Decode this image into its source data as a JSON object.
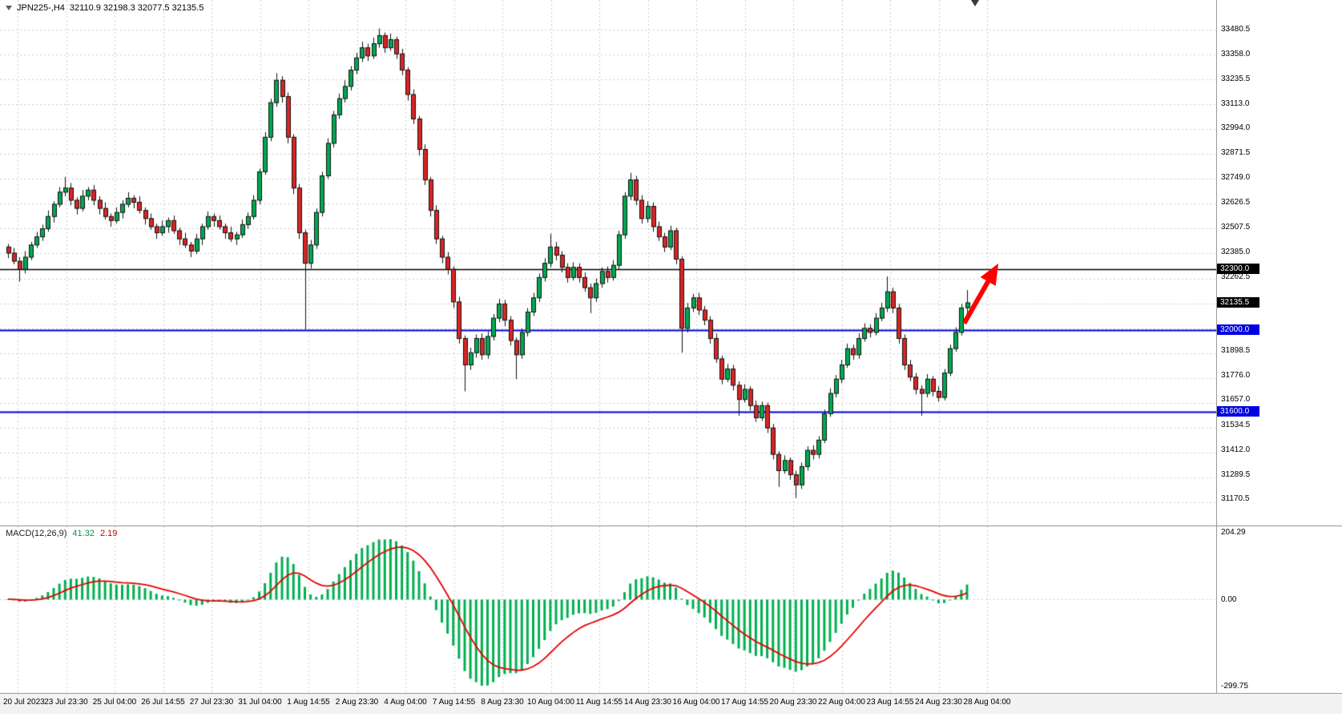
{
  "window": {
    "title_symbol": "JPN225-,H4",
    "title_ohlc": "32110.9 32198.3 32077.5 32135.5"
  },
  "price_axis": {
    "labels": [
      "33480.5",
      "33358.0",
      "33235.5",
      "33113.0",
      "32994.0",
      "32871.5",
      "32749.0",
      "32626.5",
      "32507.5",
      "32385.0",
      "32262.5",
      "31898.5",
      "31776.0",
      "31657.0",
      "31534.5",
      "31412.0",
      "31289.5",
      "31170.5"
    ],
    "grid_top": 33480.5,
    "grid_step": 122.5,
    "grid_count": 20,
    "range_top": 33625,
    "range_bottom": 31040
  },
  "time_axis": {
    "labels": [
      "20 Jul 2023",
      "23 Jul 23:30",
      "25 Jul 04:00",
      "26 Jul 14:55",
      "27 Jul 23:30",
      "31 Jul 04:00",
      "1 Aug 14:55",
      "2 Aug 23:30",
      "4 Aug 04:00",
      "7 Aug 14:55",
      "8 Aug 23:30",
      "10 Aug 04:00",
      "11 Aug 14:55",
      "14 Aug 23:30",
      "16 Aug 04:00",
      "17 Aug 14:55",
      "20 Aug 23:30",
      "22 Aug 04:00",
      "23 Aug 14:55",
      "24 Aug 23:30",
      "28 Aug 04:00"
    ]
  },
  "hlines": [
    {
      "price": 32300.0,
      "label": "32300.0",
      "color": "#000000",
      "badge_bg": "#000000",
      "width": 1.5
    },
    {
      "price": 32000.0,
      "label": "32000.0",
      "color": "#0000E0",
      "badge_bg": "#0000E0",
      "width": 2
    },
    {
      "price": 31600.0,
      "label": "31600.0",
      "color": "#0000E0",
      "badge_bg": "#0000E0",
      "width": 2
    }
  ],
  "current_price": {
    "value": 32135.5,
    "label": "32135.5",
    "badge_bg": "#000000"
  },
  "macd": {
    "label": "MACD(12,26,9)",
    "value_main": "41.32",
    "value_signal": "2.19",
    "axis_top": "204.29",
    "axis_zero": "0.00",
    "axis_bottom": "-299.75",
    "histogram_color": "#00B050",
    "signal_color": "#E60000"
  },
  "annotation_arrow": {
    "color": "#FF0000",
    "from": {
      "bar": 167.5,
      "price": 32035
    },
    "to": {
      "bar": 173,
      "price": 32305
    }
  },
  "colors": {
    "bg": "#FFFFFF",
    "grid": "#CDCDCD",
    "candle_up": "#00A850",
    "candle_down": "#D92525",
    "candle_outline": "#111111",
    "axis_text": "#000000"
  },
  "chart_data": [
    {
      "type": "candlestick",
      "title": "JPN225-,H4",
      "symbol": "JPN225-",
      "timeframe": "H4",
      "ylim": [
        31040,
        33625
      ],
      "current_bar_ohlc": {
        "open": 32110.9,
        "high": 32198.3,
        "low": 32077.5,
        "close": 32135.5
      },
      "x_tick_labels": [
        "20 Jul 2023",
        "23 Jul 23:30",
        "25 Jul 04:00",
        "26 Jul 14:55",
        "27 Jul 23:30",
        "31 Jul 04:00",
        "1 Aug 14:55",
        "2 Aug 23:30",
        "4 Aug 04:00",
        "7 Aug 14:55",
        "8 Aug 23:30",
        "10 Aug 04:00",
        "11 Aug 14:55",
        "14 Aug 23:30",
        "16 Aug 04:00",
        "17 Aug 14:55",
        "20 Aug 23:30",
        "22 Aug 04:00",
        "23 Aug 14:55",
        "24 Aug 23:30",
        "28 Aug 04:00"
      ],
      "horizontal_levels": [
        32300.0,
        32000.0,
        31600.0
      ],
      "candles": [
        [
          32410,
          32425,
          32355,
          32380
        ],
        [
          32380,
          32405,
          32325,
          32340
        ],
        [
          32340,
          32360,
          32240,
          32300
        ],
        [
          32300,
          32390,
          32280,
          32360
        ],
        [
          32360,
          32435,
          32345,
          32420
        ],
        [
          32420,
          32485,
          32405,
          32460
        ],
        [
          32460,
          32520,
          32440,
          32500
        ],
        [
          32500,
          32590,
          32485,
          32560
        ],
        [
          32560,
          32635,
          32530,
          32620
        ],
        [
          32620,
          32705,
          32605,
          32680
        ],
        [
          32680,
          32755,
          32660,
          32700
        ],
        [
          32700,
          32725,
          32615,
          32640
        ],
        [
          32640,
          32655,
          32570,
          32600
        ],
        [
          32600,
          32690,
          32585,
          32660
        ],
        [
          32660,
          32705,
          32640,
          32690
        ],
        [
          32690,
          32715,
          32615,
          32640
        ],
        [
          32640,
          32660,
          32570,
          32600
        ],
        [
          32600,
          32630,
          32545,
          32560
        ],
        [
          32560,
          32575,
          32510,
          32540
        ],
        [
          32540,
          32605,
          32525,
          32580
        ],
        [
          32580,
          32640,
          32550,
          32620
        ],
        [
          32620,
          32680,
          32605,
          32650
        ],
        [
          32650,
          32665,
          32600,
          32630
        ],
        [
          32630,
          32660,
          32575,
          32590
        ],
        [
          32590,
          32605,
          32520,
          32550
        ],
        [
          32550,
          32575,
          32495,
          32510
        ],
        [
          32510,
          32525,
          32450,
          32480
        ],
        [
          32480,
          32540,
          32465,
          32510
        ],
        [
          32510,
          32555,
          32480,
          32540
        ],
        [
          32540,
          32565,
          32475,
          32490
        ],
        [
          32490,
          32505,
          32420,
          32450
        ],
        [
          32450,
          32480,
          32405,
          32420
        ],
        [
          32420,
          32435,
          32360,
          32390
        ],
        [
          32390,
          32475,
          32375,
          32450
        ],
        [
          32450,
          32525,
          32420,
          32510
        ],
        [
          32510,
          32585,
          32495,
          32560
        ],
        [
          32560,
          32575,
          32510,
          32540
        ],
        [
          32540,
          32565,
          32495,
          32510
        ],
        [
          32510,
          32525,
          32450,
          32480
        ],
        [
          32480,
          32510,
          32435,
          32450
        ],
        [
          32450,
          32485,
          32420,
          32470
        ],
        [
          32470,
          32545,
          32455,
          32520
        ],
        [
          32520,
          32580,
          32500,
          32560
        ],
        [
          32560,
          32665,
          32545,
          32640
        ],
        [
          32640,
          32795,
          32620,
          32780
        ],
        [
          32780,
          32975,
          32765,
          32950
        ],
        [
          32950,
          33140,
          32930,
          33120
        ],
        [
          33120,
          33265,
          33100,
          33230
        ],
        [
          33230,
          33250,
          33120,
          33150
        ],
        [
          33150,
          33170,
          32920,
          32950
        ],
        [
          32950,
          32965,
          32670,
          32700
        ],
        [
          32700,
          32720,
          32450,
          32480
        ],
        [
          32480,
          32495,
          32005,
          32330
        ],
        [
          32330,
          32445,
          32305,
          32420
        ],
        [
          32420,
          32600,
          32400,
          32580
        ],
        [
          32580,
          32780,
          32560,
          32760
        ],
        [
          32760,
          32945,
          32745,
          32920
        ],
        [
          32920,
          33080,
          32900,
          33060
        ],
        [
          33060,
          33165,
          33040,
          33140
        ],
        [
          33140,
          33230,
          33120,
          33200
        ],
        [
          33200,
          33300,
          33180,
          33280
        ],
        [
          33280,
          33365,
          33260,
          33340
        ],
        [
          33340,
          33420,
          33320,
          33390
        ],
        [
          33390,
          33410,
          33325,
          33350
        ],
        [
          33350,
          33440,
          33335,
          33410
        ],
        [
          33410,
          33485,
          33390,
          33450
        ],
        [
          33450,
          33465,
          33365,
          33390
        ],
        [
          33390,
          33460,
          33375,
          33430
        ],
        [
          33430,
          33445,
          33335,
          33360
        ],
        [
          33360,
          33385,
          33255,
          33280
        ],
        [
          33280,
          33295,
          33130,
          33160
        ],
        [
          33160,
          33185,
          33015,
          33040
        ],
        [
          33040,
          33055,
          32860,
          32890
        ],
        [
          32890,
          32915,
          32715,
          32740
        ],
        [
          32740,
          32755,
          32560,
          32590
        ],
        [
          32590,
          32615,
          32425,
          32450
        ],
        [
          32450,
          32465,
          32330,
          32360
        ],
        [
          32360,
          32385,
          32275,
          32300
        ],
        [
          32300,
          32315,
          32110,
          32140
        ],
        [
          32140,
          32165,
          31935,
          31960
        ],
        [
          31960,
          31975,
          31700,
          31830
        ],
        [
          31830,
          31915,
          31805,
          31890
        ],
        [
          31890,
          31980,
          31865,
          31960
        ],
        [
          31960,
          31985,
          31855,
          31880
        ],
        [
          31880,
          31995,
          31860,
          31970
        ],
        [
          31970,
          32080,
          31950,
          32060
        ],
        [
          32060,
          32155,
          32040,
          32130
        ],
        [
          32130,
          32150,
          32020,
          32050
        ],
        [
          32050,
          32070,
          31925,
          31950
        ],
        [
          31950,
          31965,
          31760,
          31880
        ],
        [
          31880,
          32010,
          31860,
          31990
        ],
        [
          31990,
          32110,
          31970,
          32090
        ],
        [
          32090,
          32185,
          32070,
          32160
        ],
        [
          32160,
          32280,
          32140,
          32260
        ],
        [
          32260,
          32355,
          32240,
          32330
        ],
        [
          32330,
          32475,
          32310,
          32410
        ],
        [
          32410,
          32435,
          32345,
          32370
        ],
        [
          32370,
          32390,
          32285,
          32310
        ],
        [
          32310,
          32330,
          32235,
          32260
        ],
        [
          32260,
          32335,
          32245,
          32310
        ],
        [
          32310,
          32330,
          32235,
          32260
        ],
        [
          32260,
          32285,
          32190,
          32210
        ],
        [
          32210,
          32230,
          32085,
          32160
        ],
        [
          32160,
          32255,
          32140,
          32230
        ],
        [
          32230,
          32310,
          32210,
          32290
        ],
        [
          32290,
          32315,
          32235,
          32260
        ],
        [
          32260,
          32345,
          32245,
          32320
        ],
        [
          32320,
          32490,
          32300,
          32470
        ],
        [
          32470,
          32680,
          32450,
          32660
        ],
        [
          32660,
          32775,
          32640,
          32740
        ],
        [
          32740,
          32760,
          32615,
          32640
        ],
        [
          32640,
          32665,
          32525,
          32550
        ],
        [
          32550,
          32635,
          32530,
          32610
        ],
        [
          32610,
          32630,
          32485,
          32510
        ],
        [
          32510,
          32535,
          32440,
          32460
        ],
        [
          32460,
          32480,
          32385,
          32410
        ],
        [
          32410,
          32515,
          32395,
          32490
        ],
        [
          32490,
          32505,
          32325,
          32350
        ],
        [
          32350,
          32365,
          31890,
          32010
        ],
        [
          32010,
          32135,
          31990,
          32110
        ],
        [
          32110,
          32180,
          32090,
          32160
        ],
        [
          32160,
          32185,
          32075,
          32100
        ],
        [
          32100,
          32120,
          32025,
          32050
        ],
        [
          32050,
          32070,
          31935,
          31960
        ],
        [
          31960,
          31985,
          31840,
          31860
        ],
        [
          31860,
          31875,
          31735,
          31760
        ],
        [
          31760,
          31835,
          31745,
          31810
        ],
        [
          31810,
          31830,
          31705,
          31730
        ],
        [
          31730,
          31750,
          31580,
          31660
        ],
        [
          31660,
          31735,
          31645,
          31710
        ],
        [
          31710,
          31725,
          31605,
          31630
        ],
        [
          31630,
          31655,
          31550,
          31570
        ],
        [
          31570,
          31650,
          31555,
          31630
        ],
        [
          31630,
          31645,
          31495,
          31520
        ],
        [
          31520,
          31540,
          31365,
          31390
        ],
        [
          31390,
          31405,
          31230,
          31310
        ],
        [
          31310,
          31385,
          31295,
          31360
        ],
        [
          31360,
          31375,
          31265,
          31290
        ],
        [
          31290,
          31310,
          31175,
          31240
        ],
        [
          31240,
          31350,
          31220,
          31330
        ],
        [
          31330,
          31430,
          31310,
          31410
        ],
        [
          31410,
          31435,
          31365,
          31390
        ],
        [
          31390,
          31480,
          31370,
          31460
        ],
        [
          31460,
          31610,
          31445,
          31590
        ],
        [
          31590,
          31715,
          31575,
          31690
        ],
        [
          31690,
          31780,
          31670,
          31760
        ],
        [
          31760,
          31855,
          31740,
          31830
        ],
        [
          31830,
          31935,
          31815,
          31910
        ],
        [
          31910,
          31930,
          31855,
          31880
        ],
        [
          31880,
          31985,
          31860,
          31960
        ],
        [
          31960,
          32035,
          31945,
          32010
        ],
        [
          32010,
          32030,
          31965,
          31990
        ],
        [
          31990,
          32085,
          31975,
          32060
        ],
        [
          32060,
          32135,
          32045,
          32110
        ],
        [
          32110,
          32265,
          32090,
          32190
        ],
        [
          32190,
          32210,
          32085,
          32110
        ],
        [
          32110,
          32130,
          31935,
          31960
        ],
        [
          31960,
          31980,
          31805,
          31830
        ],
        [
          31830,
          31855,
          31750,
          31770
        ],
        [
          31770,
          31790,
          31685,
          31710
        ],
        [
          31710,
          31730,
          31580,
          31690
        ],
        [
          31690,
          31785,
          31670,
          31760
        ],
        [
          31760,
          31775,
          31675,
          31700
        ],
        [
          31700,
          31725,
          31650,
          31670
        ],
        [
          31670,
          31810,
          31655,
          31790
        ],
        [
          31790,
          31930,
          31775,
          31910
        ],
        [
          31910,
          32015,
          31895,
          31990
        ],
        [
          31990,
          32130,
          31975,
          32110
        ],
        [
          32110.9,
          32198.3,
          32077.5,
          32135.5
        ]
      ]
    },
    {
      "type": "bar+line",
      "title": "MACD(12,26,9)",
      "ylim": [
        -299.75,
        204.29
      ],
      "y_tick_labels": [
        "204.29",
        "0.00",
        "-299.75"
      ],
      "current": {
        "macd": 41.32,
        "signal": 2.19
      },
      "note": "green histogram = MACD main (EMA12-EMA26 of candle closes), red line = 9-period EMA signal"
    }
  ]
}
